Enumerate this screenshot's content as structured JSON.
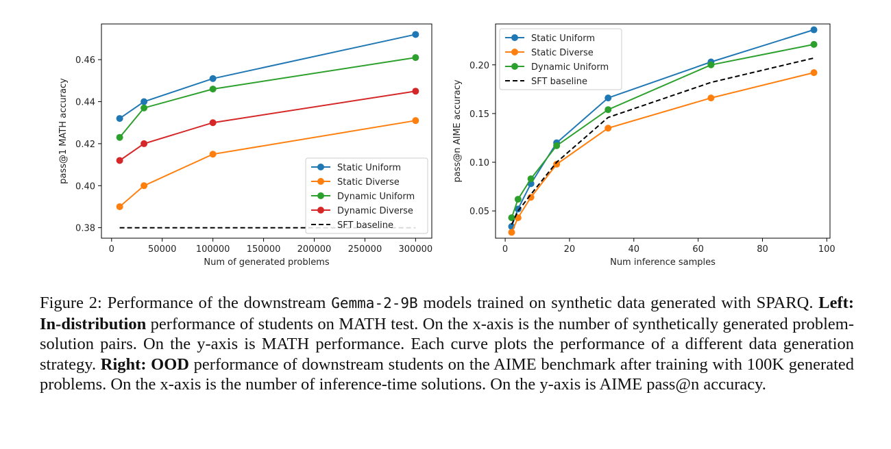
{
  "chart_data": [
    {
      "type": "line",
      "xlabel": "Num of generated problems",
      "ylabel": "pass@1 MATH accuracy",
      "xlim": [
        -10000,
        316000
      ],
      "ylim": [
        0.375,
        0.477
      ],
      "xticks": [
        0,
        50000,
        100000,
        150000,
        200000,
        250000,
        300000
      ],
      "xtick_labels": [
        "0",
        "50000",
        "100000",
        "150000",
        "200000",
        "250000",
        "300000"
      ],
      "yticks": [
        0.38,
        0.4,
        0.42,
        0.44,
        0.46
      ],
      "ytick_labels": [
        "0.38",
        "0.40",
        "0.42",
        "0.44",
        "0.46"
      ],
      "legend": "lower-right",
      "grid": false,
      "series": [
        {
          "name": "Static Uniform",
          "color": "#1f77b4",
          "marker": "o",
          "x": [
            8000,
            32000,
            100000,
            300000
          ],
          "y": [
            0.432,
            0.44,
            0.451,
            0.472
          ]
        },
        {
          "name": "Static Diverse",
          "color": "#ff7f0e",
          "marker": "o",
          "x": [
            8000,
            32000,
            100000,
            300000
          ],
          "y": [
            0.39,
            0.4,
            0.415,
            0.431
          ]
        },
        {
          "name": "Dynamic Uniform",
          "color": "#2ca02c",
          "marker": "o",
          "x": [
            8000,
            32000,
            100000,
            300000
          ],
          "y": [
            0.423,
            0.437,
            0.446,
            0.461
          ]
        },
        {
          "name": "Dynamic Diverse",
          "color": "#d62728",
          "marker": "o",
          "x": [
            8000,
            32000,
            100000,
            300000
          ],
          "y": [
            0.412,
            0.42,
            0.43,
            0.445
          ]
        },
        {
          "name": "SFT baseline",
          "color": "#000000",
          "dashed": true,
          "x": [
            8000,
            300000
          ],
          "y": [
            0.38,
            0.38
          ]
        }
      ]
    },
    {
      "type": "line",
      "xlabel": "Num inference samples",
      "ylabel": "pass@n AIME accuracy",
      "xlim": [
        -3,
        101
      ],
      "ylim": [
        0.022,
        0.242
      ],
      "xticks": [
        0,
        20,
        40,
        60,
        80,
        100
      ],
      "xtick_labels": [
        "0",
        "20",
        "40",
        "60",
        "80",
        "100"
      ],
      "yticks": [
        0.05,
        0.1,
        0.15,
        0.2
      ],
      "ytick_labels": [
        "0.05",
        "0.10",
        "0.15",
        "0.20"
      ],
      "legend": "upper-left",
      "grid": false,
      "series": [
        {
          "name": "Static Uniform",
          "color": "#1f77b4",
          "marker": "o",
          "x": [
            2,
            4,
            8,
            16,
            32,
            64,
            96
          ],
          "y": [
            0.034,
            0.052,
            0.078,
            0.12,
            0.166,
            0.203,
            0.236
          ]
        },
        {
          "name": "Static Diverse",
          "color": "#ff7f0e",
          "marker": "o",
          "x": [
            2,
            4,
            8,
            16,
            32,
            64,
            96
          ],
          "y": [
            0.028,
            0.043,
            0.064,
            0.098,
            0.135,
            0.166,
            0.192
          ]
        },
        {
          "name": "Dynamic Uniform",
          "color": "#2ca02c",
          "marker": "o",
          "x": [
            2,
            4,
            8,
            16,
            32,
            64,
            96
          ],
          "y": [
            0.043,
            0.062,
            0.083,
            0.117,
            0.154,
            0.2,
            0.221
          ]
        },
        {
          "name": "SFT baseline",
          "color": "#000000",
          "dashed": true,
          "x": [
            2,
            4,
            8,
            16,
            32,
            64,
            96
          ],
          "y": [
            0.036,
            0.05,
            0.067,
            0.1,
            0.146,
            0.182,
            0.207
          ]
        }
      ]
    }
  ],
  "caption": {
    "part1": "Figure 2: Performance of the downstream ",
    "model": "Gemma-2-9B",
    "part2": " models trained on synthetic data generated with SPARQ. ",
    "left_bold": "Left: In-distribution",
    "part3": " performance of students on MATH test. On the x-axis is the number of synthetically generated problem-solution pairs. On the y-axis is MATH performance. Each curve plots the performance of a different data generation strategy. ",
    "right_bold": "Right: OOD",
    "part4": " performance of downstream students on the AIME benchmark after training with 100K generated problems. On the x-axis is the number of inference-time solutions. On the y-axis is AIME pass@n accuracy."
  }
}
